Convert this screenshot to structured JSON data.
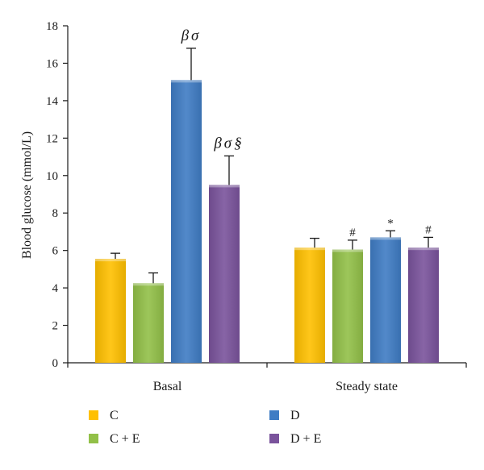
{
  "chart_data": {
    "type": "bar",
    "title": "",
    "xlabel": "",
    "ylabel": "Blood glucose (mmol/L)",
    "ylim": [
      0,
      18
    ],
    "yticks": [
      0,
      2,
      4,
      6,
      8,
      10,
      12,
      14,
      16,
      18
    ],
    "categories": [
      "Basal",
      "Steady state"
    ],
    "series": [
      {
        "name": "C",
        "color": "#ffc000",
        "values": [
          5.55,
          6.15
        ],
        "errors": [
          0.3,
          0.5
        ],
        "annotations": [
          "",
          ""
        ]
      },
      {
        "name": "C + E",
        "color": "#92c048",
        "values": [
          4.25,
          6.05
        ],
        "errors": [
          0.55,
          0.5
        ],
        "annotations": [
          "",
          "#"
        ]
      },
      {
        "name": "D",
        "color": "#3f7cc4",
        "values": [
          15.1,
          6.7
        ],
        "errors": [
          1.7,
          0.35
        ],
        "annotations": [
          "βσ",
          "*"
        ]
      },
      {
        "name": "D + E",
        "color": "#7a539c",
        "values": [
          9.5,
          6.15
        ],
        "errors": [
          1.55,
          0.55
        ],
        "annotations": [
          "βσ§",
          "#"
        ]
      }
    ],
    "legend": {
      "placement": "bottom",
      "columns": 2
    },
    "grid": false
  }
}
